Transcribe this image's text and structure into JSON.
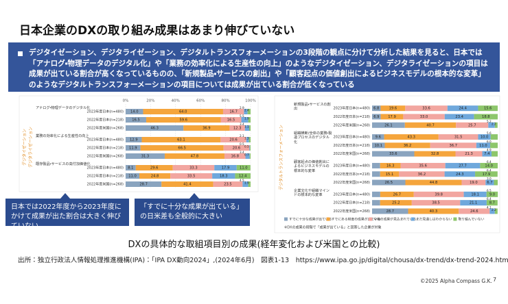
{
  "slide": {
    "title": "日本企業のDXの取り組み成果はあまり伸びていない",
    "summary": "デジタイゼーション、デジタライゼーション、デジタルトランスフォーメーションの3段階の観点に分けて分析した結果を見ると、日本では「アナログ・物理データのデジタル化」や「業務の効率化による生産性の向上」のようなデジタイゼーション、デジタライゼーションの項目は成果が出ている割合が高くなっているものの、「新規製品・サービスの創出」や「顧客起点の価値創出によるビジネスモデルの根本的な変革」のようなデジタルトランスフォーメーションの項目については成果が出ている割合が低くなっている",
    "callouts": [
      "日本では2022年度から2023年度にかけて成果が出た割合は大きく伸びていない",
      "「すでに十分な成果が出ている」の日米差も全般的に大きい"
    ],
    "caption": "DXの具体的な取組項目別の成果(経年変化および米国との比較)",
    "source": "出所：独立行政法人情報処理推進機構(IPA)：「IPA DX動向2024」,(2024年6月)　図表1-13　https://www.ipa.go.jp/digital/chousa/dx-trend/dx-trend-2024.html",
    "copyright": "©2025 Alpha Compass G.K.",
    "page": "7"
  },
  "chart_data": [
    {
      "type": "bar",
      "side_labels": [
        "デジタイゼーション",
        "デジタライゼーション"
      ],
      "groups": [
        "アナログ・物理データのデジタル化",
        "業務の効率化による生産性の向上",
        "既存製品・サービスの高付加価値化"
      ],
      "categories": [
        "2023年度日本(n=480)",
        "2022年度日本(n=218)",
        "2022年度米国(n=268)",
        "2023年度日本(n=480)",
        "2022年度日本(n=218)",
        "2022年度米国(n=268)",
        "2023年度日本(n=480)",
        "2022年度日本(n=218)",
        "2022年度米国(n=268)"
      ],
      "xlim": [
        0,
        100
      ],
      "xticks": [
        {
          "value": 0,
          "label": "0%"
        },
        {
          "value": 20,
          "label": "20%"
        },
        {
          "value": 40,
          "label": "40%"
        },
        {
          "value": 60,
          "label": "60%"
        },
        {
          "value": 80,
          "label": "80%"
        },
        {
          "value": 100,
          "label": "100%"
        }
      ],
      "series": [
        {
          "color": "#8aa4bf",
          "values": [
            14.0,
            16.5,
            46.3,
            12.9,
            11.9,
            31.3,
            8.1,
            11.0,
            28.7
          ],
          "value_labels": [
            "14.0",
            "16.5",
            "46.3",
            "12.9",
            "11.9",
            "31.3",
            "8.1",
            "11.0",
            "28.7"
          ]
        },
        {
          "color": "#f5a53c",
          "values": [
            64.0,
            59.6,
            36.9,
            63.1,
            66.5,
            47.8,
            29.6,
            24.8,
            41.4
          ],
          "value_labels": [
            "64.0",
            "59.6",
            "36.9",
            "63.1",
            "66.5",
            "47.8",
            "29.6",
            "24.8",
            "41.4"
          ]
        },
        {
          "color": "#f2a6a0",
          "values": [
            16.7,
            16.5,
            12.3,
            20.6,
            20.6,
            16.8,
            33.3,
            33.5,
            23.5
          ],
          "value_labels": [
            "16.7",
            "16.5",
            "12.3",
            "20.6",
            "20.6",
            "16.8",
            "33.3",
            "33.5",
            "23.5"
          ]
        },
        {
          "color": "#6fa8dc",
          "values": [
            2.9,
            5.5,
            3.4,
            2.1,
            0.5,
            3.4,
            17.9,
            18.3,
            4.5
          ],
          "value_labels": [
            "2.9",
            "5.5",
            "3.4",
            "2.1",
            "0.5",
            "3.4",
            "17.9",
            "18.3",
            "4.5"
          ]
        },
        {
          "color": "#8dc66b",
          "values": [
            2.4,
            1.9,
            1.1,
            1.3,
            0.5,
            0.7,
            11.0,
            12.4,
            1.9
          ],
          "value_labels": [
            "2.4",
            "1.9",
            "1.1",
            "1.3",
            "0.5",
            "0.7",
            "11.0",
            "12.4",
            "1.9"
          ]
        }
      ]
    },
    {
      "type": "bar",
      "side_labels": [
        "デジタルトランスフォーメーション"
      ],
      "groups": [
        "新規製品・サービスの創出",
        "組織横断/全体の業務・製造プロセスのデジタル化",
        "顧客起点の価値創出によるビジネスモデルの根本的な変革",
        "企業文化や組織マインドの根本的な変革"
      ],
      "categories": [
        "2023年度日本(n=480)",
        "2022年度日本(n=218)",
        "2022年度米国(n=268)",
        "2023年度日本(n=480)",
        "2022年度日本(n=218)",
        "2022年度米国(n=268)",
        "2023年度日本(n=480)",
        "2022年度日本(n=218)",
        "2022年度米国(n=268)",
        "2023年度日本(n=480)",
        "2022年度日本(n=218)",
        "2022年度米国(n=268)"
      ],
      "xlim": [
        0,
        100
      ],
      "note": "※DXの成果の段階で「成果が出ている」と回答した企業が対象",
      "series": [
        {
          "name": "すでに十分な成果が出ている",
          "color": "#8aa4bf",
          "values": [
            6.8,
            6.9,
            26.1,
            9.6,
            10.1,
            33.6,
            6.4,
            6.4,
            26.5,
            6.5,
            6.4,
            28.7
          ],
          "value_labels": [
            "6.8",
            "6.9",
            "26.1",
            "9.6",
            "10.1",
            "33.6",
            "6.4",
            "6.4",
            "26.5",
            "6.5",
            "6.4",
            "28.7"
          ]
        },
        {
          "name": "すでにある程度の成果が出ている",
          "color": "#f5a53c",
          "values": [
            19.6,
            17.9,
            40.7,
            43.3,
            36.2,
            32.8,
            16.3,
            15.1,
            44.8,
            26.7,
            25.2,
            40.3
          ],
          "value_labels": [
            "19.6",
            "17.9",
            "40.7",
            "43.3",
            "36.2",
            "32.8",
            "16.3",
            "15.1",
            "44.8",
            "26.7",
            "25.2",
            "40.3"
          ]
        },
        {
          "name": "今後の成果が見込まれている",
          "color": "#f2a6a0",
          "values": [
            33.6,
            33.0,
            25.7,
            31.5,
            36.7,
            21.3,
            35.6,
            36.2,
            19.0,
            39.8,
            38.5,
            24.6
          ],
          "value_labels": [
            "33.6",
            "33.0",
            "25.7",
            "31.5",
            "36.7",
            "21.3",
            "35.6",
            "36.2",
            "19.0",
            "39.8",
            "38.5",
            "24.6"
          ]
        },
        {
          "name": "まだ見通しはわからない",
          "color": "#6fa8dc",
          "values": [
            24.4,
            23.4,
            5.2,
            10.0,
            11.0,
            7.4,
            27.7,
            24.3,
            6.7,
            18.1,
            21.1,
            4.1
          ],
          "value_labels": [
            "24.4",
            "23.4",
            "5.2",
            "10.0",
            "11.0",
            "7.4",
            "27.7",
            "24.3",
            "6.7",
            "18.1",
            "21.1",
            "4.1"
          ]
        },
        {
          "name": "取り組んでいない",
          "color": "#8dc66b",
          "values": [
            15.6,
            18.8,
            2.2,
            5.6,
            6.0,
            4.9,
            14.0,
            17.9,
            3.0,
            9.0,
            8.7,
            2.2
          ],
          "value_labels": [
            "15.6",
            "18.8",
            "2.2",
            "5.6",
            "6.0",
            "4.9",
            "14.0",
            "17.9",
            "3.0",
            "9.0",
            "8.7",
            "2.2"
          ]
        }
      ]
    }
  ]
}
